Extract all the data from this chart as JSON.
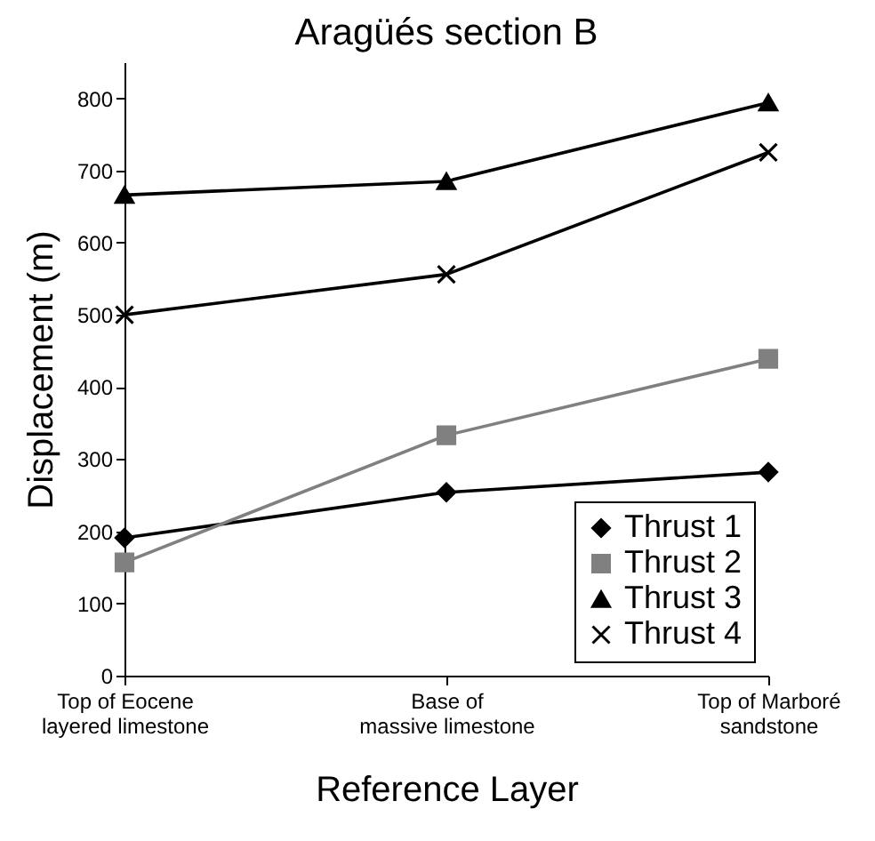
{
  "chart_data": {
    "type": "line",
    "title": "Aragüés section B",
    "xlabel": "Reference Layer",
    "ylabel": "Displacement (m)",
    "categories": [
      "Top of Eocene\nlayered limestone",
      "Base of\nmassive limestone",
      "Top of Marboré\nsandstone"
    ],
    "series": [
      {
        "name": "Thrust 1",
        "color": "#000000",
        "marker": "diamond",
        "values": [
          191,
          254,
          282
        ]
      },
      {
        "name": "Thrust 2",
        "color": "#808080",
        "marker": "square",
        "values": [
          157,
          333,
          439
        ]
      },
      {
        "name": "Thrust 3",
        "color": "#000000",
        "marker": "triangle",
        "values": [
          666,
          685,
          794
        ]
      },
      {
        "name": "Thrust 4",
        "color": "#000000",
        "marker": "cross",
        "values": [
          500,
          556,
          725
        ]
      }
    ],
    "ylim": [
      0,
      850
    ],
    "yticks": [
      0,
      100,
      200,
      300,
      400,
      500,
      600,
      700,
      800
    ],
    "grid": false,
    "legend": "bottom right",
    "line_style": "solid"
  }
}
